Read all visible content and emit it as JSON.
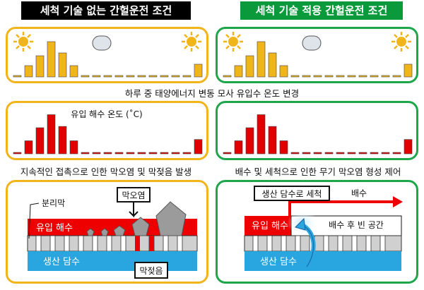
{
  "titles": {
    "left": "세척 기술 없는 간헐운전 조건",
    "right": "세척 기술 적용 간헐운전 조건"
  },
  "captions": {
    "solar": "하루 중 태양에너지 변동 모사 유입수 온도 변경",
    "left_mid": "지속적인 접촉으로 인한 막오염 및 막젖음 발생",
    "right_mid": "배수 및 세척으로 인한 무기 막오염 형성 제어"
  },
  "feed_temp_label": "유입 해수 온도 (˚C)",
  "left_diagram": {
    "membrane_label": "분리막",
    "feed_label": "유입 해수",
    "product_label": "생산 담수",
    "scaling_label": "막오염",
    "wetting_label": "막젖음"
  },
  "right_diagram": {
    "feed_label": "유입 해수",
    "product_label": "생산 담수",
    "wash_label": "생산 담수로 세척",
    "drain_label": "배수",
    "empty_label": "배수 후 빈 공간"
  },
  "colors": {
    "yellow_bar": "#f1b51c",
    "red_bar": "#e00000",
    "feed_red": "#ee0000",
    "product_blue": "#29a6df",
    "yellow_border": "#f1b51c",
    "green_border": "#1ea64b"
  },
  "icons": [
    "sun-icon",
    "moon-icon"
  ],
  "chart_data": [
    {
      "type": "bar",
      "title": "",
      "values": [
        1,
        8,
        15,
        25,
        17,
        8,
        1,
        1,
        1,
        1,
        1,
        1,
        1,
        1,
        1,
        1,
        9
      ]
    },
    {
      "type": "bar",
      "title": "",
      "values": [
        1,
        8,
        15,
        25,
        17,
        8,
        1,
        1,
        1,
        1,
        1,
        1,
        1,
        1,
        1,
        1,
        9
      ]
    },
    {
      "type": "bar",
      "title": "유입 해수 온도 (˚C)",
      "values": [
        1,
        10,
        20,
        30,
        21,
        10,
        1,
        1,
        1,
        1,
        1,
        1,
        1,
        1,
        1,
        1,
        11
      ]
    },
    {
      "type": "bar",
      "title": "",
      "values": [
        1,
        10,
        20,
        30,
        21,
        10,
        1,
        1,
        1,
        1,
        1,
        1,
        1,
        1,
        1,
        1,
        11
      ]
    }
  ]
}
